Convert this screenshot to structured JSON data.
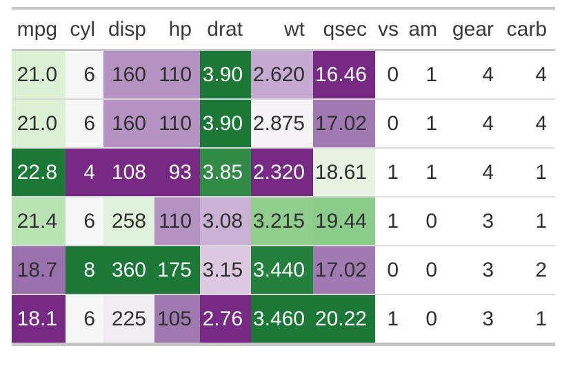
{
  "chart_data": {
    "type": "table",
    "subtype": "heatmap-table",
    "title": "",
    "columns": [
      "mpg",
      "cyl",
      "disp",
      "hp",
      "drat",
      "wt",
      "qsec",
      "vs",
      "am",
      "gear",
      "carb"
    ],
    "rows": [
      [
        "21.0",
        "6",
        "160",
        "110",
        "3.90",
        "2.620",
        "16.46",
        "0",
        "1",
        "4",
        "4"
      ],
      [
        "21.0",
        "6",
        "160",
        "110",
        "3.90",
        "2.875",
        "17.02",
        "0",
        "1",
        "4",
        "4"
      ],
      [
        "22.8",
        "4",
        "108",
        "93",
        "3.85",
        "2.320",
        "18.61",
        "1",
        "1",
        "4",
        "1"
      ],
      [
        "21.4",
        "6",
        "258",
        "110",
        "3.08",
        "3.215",
        "19.44",
        "1",
        "0",
        "3",
        "1"
      ],
      [
        "18.7",
        "8",
        "360",
        "175",
        "3.15",
        "3.440",
        "17.02",
        "0",
        "0",
        "3",
        "2"
      ],
      [
        "18.1",
        "6",
        "225",
        "105",
        "2.76",
        "3.460",
        "20.22",
        "1",
        "0",
        "3",
        "1"
      ]
    ],
    "colored_column_count": 7,
    "color_scale": {
      "name": "PRGn-9 diverging, purple = column minimum, green = column maximum, scaled per column",
      "palette": [
        "#762a83",
        "#9970ab",
        "#c2a5cf",
        "#e7d4e8",
        "#f7f7f7",
        "#d9f0d3",
        "#a6dba0",
        "#5aae61",
        "#1b7837"
      ]
    },
    "layout": {
      "grid": "off",
      "legend": "none",
      "row_names_shown": false
    }
  },
  "colors": {
    "background": "#ffffff",
    "outer_border": "#c6c6c6",
    "row_separator": "#d9d9d9",
    "header_text": "#3a3a3a",
    "cell_text_dark": "#2f2f2f",
    "cell_text_light": "#ffffff",
    "uncolored_cell_background": "#ffffff"
  }
}
